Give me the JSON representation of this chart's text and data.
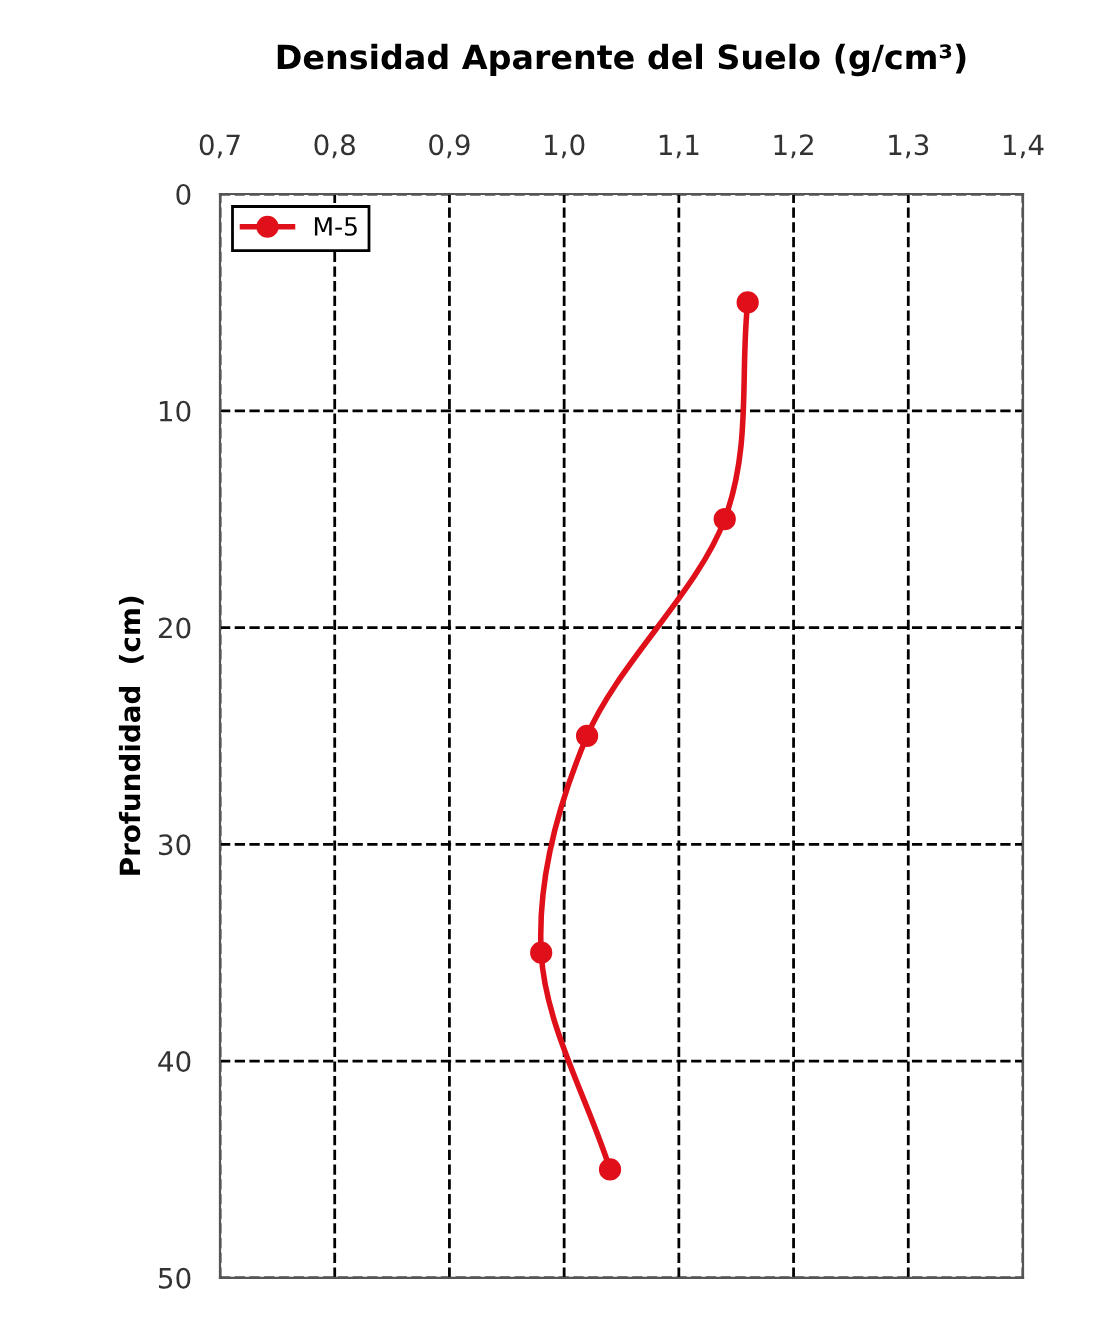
{
  "chart_data": {
    "type": "line",
    "title": "Densidad Aparente del Suelo (g/cm³)",
    "ylabel": "Profundidad  (cm)",
    "series": [
      {
        "name": "M-5",
        "color": "#e0101a",
        "x": [
          1.16,
          1.14,
          1.02,
          0.98,
          1.04
        ],
        "values": [
          5,
          15,
          25,
          35,
          45
        ]
      }
    ],
    "xlim": [
      0.7,
      1.4
    ],
    "xticks": [
      {
        "value": 0.7,
        "label": "0,7"
      },
      {
        "value": 0.8,
        "label": "0,8"
      },
      {
        "value": 0.9,
        "label": "0,9"
      },
      {
        "value": 1.0,
        "label": "1,0"
      },
      {
        "value": 1.1,
        "label": "1,1"
      },
      {
        "value": 1.2,
        "label": "1,2"
      },
      {
        "value": 1.3,
        "label": "1,3"
      },
      {
        "value": 1.4,
        "label": "1,4"
      }
    ],
    "ylim": [
      50,
      0
    ],
    "yticks": [
      0,
      10,
      20,
      30,
      40,
      50
    ],
    "grid": true,
    "legend": "top left",
    "marker": "circle",
    "line_style": "solid"
  }
}
